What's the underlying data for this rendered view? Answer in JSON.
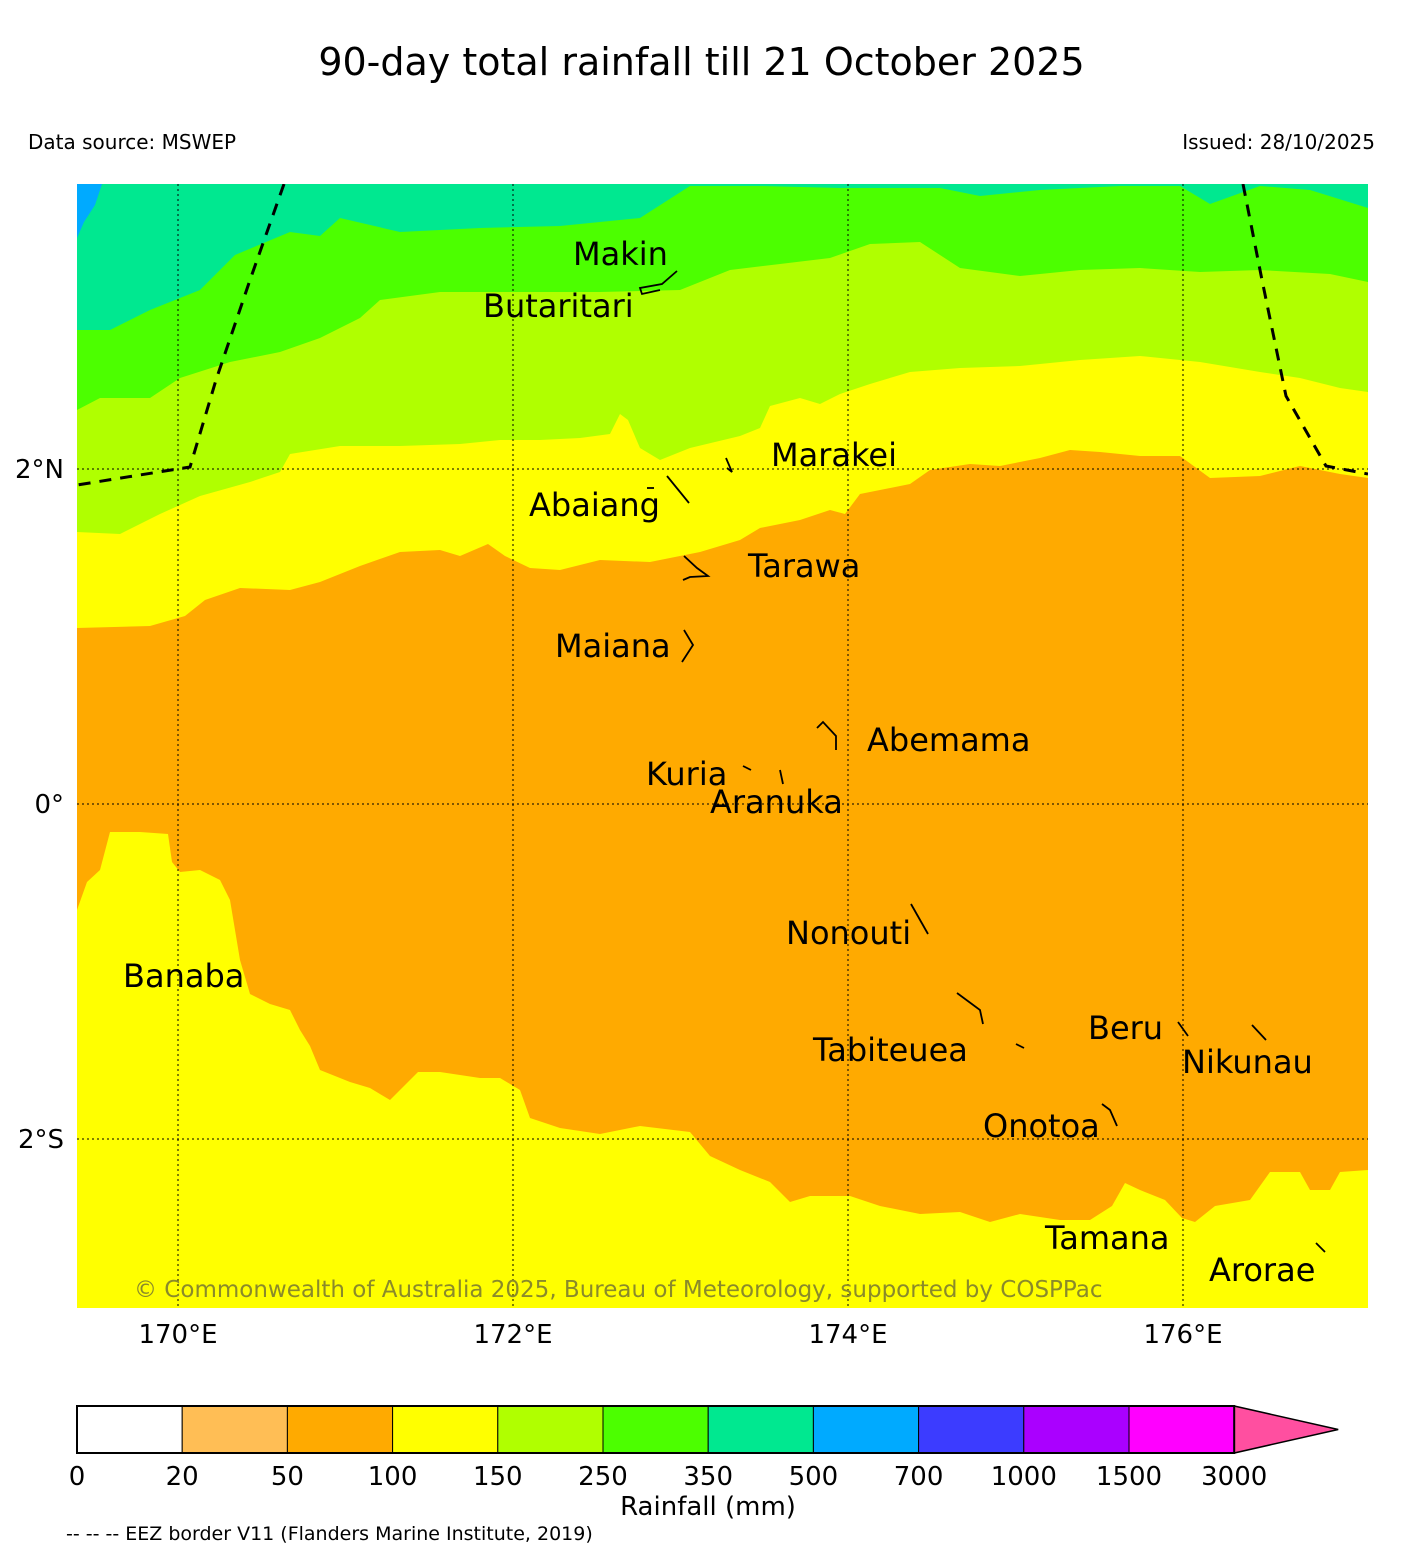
{
  "title": "90-day total rainfall till 21 October 2025",
  "data_source": "Data source: MSWEP",
  "issued": "Issued: 28/10/2025",
  "copyright": "© Commonwealth of Australia 2025, Bureau of Meteorology, supported by COSPPac",
  "axes": {
    "lon_labels": [
      "170°E",
      "172°E",
      "174°E",
      "176°E"
    ],
    "lat_labels": [
      "2°N",
      "0°",
      "2°S"
    ]
  },
  "islands": [
    "Makin",
    "Butaritari",
    "Marakei",
    "Abaiang",
    "Tarawa",
    "Maiana",
    "Abemama",
    "Kuria",
    "Aranuka",
    "Banaba",
    "Nonouti",
    "Tabiteuea",
    "Beru",
    "Nikunau",
    "Onotoa",
    "Tamana",
    "Arorae"
  ],
  "legend": {
    "ticks": [
      "0",
      "20",
      "50",
      "100",
      "150",
      "250",
      "350",
      "500",
      "700",
      "1000",
      "1500",
      "3000"
    ],
    "colors": [
      "#ffffff",
      "#ffbe55",
      "#ffaa00",
      "#ffff00",
      "#b0ff00",
      "#4cff00",
      "#00e890",
      "#00aaff",
      "#3c3cff",
      "#aa00ff",
      "#ff00ff",
      "#ff4fa0"
    ],
    "label": "Rainfall (mm)"
  },
  "eez_note": "-- -- -- EEZ border V11 (Flanders Marine Institute, 2019)"
}
